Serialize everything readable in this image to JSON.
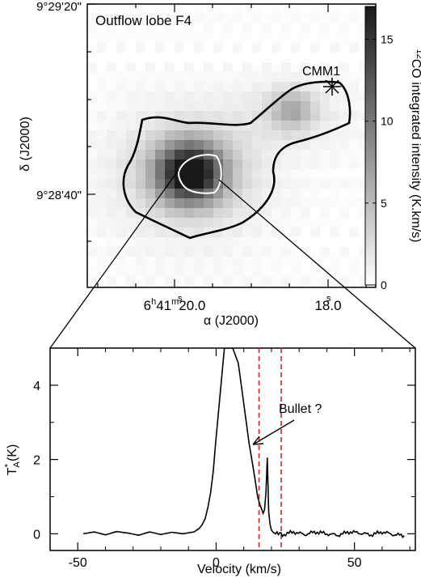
{
  "chart_data": [
    {
      "type": "heatmap",
      "title": "Outflow lobe F4",
      "xlabel": "α (J2000)",
      "ylabel": "δ (J2000)",
      "x_ticks": [
        {
          "label_main": "6",
          "sup1": "h",
          "label_mid": "41",
          "sup2": "m",
          "label_end": "20.0",
          "sup3": "s",
          "ra_s": 20.0
        },
        {
          "label_main": "18.0",
          "sup3": "s",
          "ra_s": 18.0
        }
      ],
      "y_ticks": [
        {
          "label": "9°29'20\"",
          "dec_s": 80
        },
        {
          "label": "9°28'40\"",
          "dec_s": 40
        }
      ],
      "ra_range_s": [
        21.5,
        17.0
      ],
      "dec_range_s": [
        17,
        80
      ],
      "colorbar": {
        "label_pre": "12",
        "label_post": "CO integrated intensity (K.km/s)",
        "min": 0,
        "max": 17,
        "ticks": [
          "0",
          "5",
          "10",
          "15"
        ],
        "tick_values": [
          0,
          5,
          10,
          15
        ],
        "colormap": "gray_reversed"
      },
      "source_marker": {
        "label": "CMM1",
        "ra_s": 18.0,
        "dec_s": 61.0,
        "symbol": "asterisk"
      },
      "emission_peaks": [
        {
          "ra_s": 19.9,
          "dec_s": 42.5,
          "intensity": 17
        },
        {
          "ra_s": 18.3,
          "dec_s": 56.5,
          "intensity": 5
        }
      ],
      "contour_colors": {
        "outer": "#000000",
        "inner": "#ffffff"
      }
    },
    {
      "type": "line",
      "xlabel": "Velocity (km/s)",
      "ylabel_main": "T",
      "ylabel_sub": "A",
      "ylabel_sup": "*",
      "ylabel_unit": "(K)",
      "xlim": [
        -60,
        72
      ],
      "ylim": [
        -0.45,
        5.0
      ],
      "x_ticks": [
        -50,
        0,
        50
      ],
      "y_ticks": [
        0,
        2,
        4
      ],
      "annotation": {
        "text": "Bullet ?",
        "target_velocity": 20,
        "target_ta": 2.2
      },
      "vertical_lines": [
        {
          "x": 15.5,
          "color": "#e02020"
        },
        {
          "x": 23.5,
          "color": "#e02020"
        }
      ],
      "spectrum": {
        "velocity": [
          -48,
          -44,
          -40,
          -36,
          -32,
          -28,
          -24,
          -20,
          -16,
          -12,
          -8,
          -6,
          -5,
          -4,
          -3,
          -2,
          -1,
          0,
          1,
          2,
          3,
          3.5,
          4,
          6,
          8,
          10,
          12,
          14,
          15,
          16,
          17,
          17.5,
          18,
          18.5,
          19,
          19.5,
          20,
          20.5,
          21,
          21.5,
          22,
          24,
          28,
          32,
          36,
          40,
          44,
          48,
          52,
          56,
          60,
          64,
          68
        ],
        "ta": [
          0.0,
          0.05,
          -0.03,
          0.06,
          0.02,
          -0.04,
          0.05,
          -0.02,
          0.04,
          0.0,
          0.05,
          0.15,
          0.25,
          0.4,
          0.7,
          1.1,
          1.7,
          2.6,
          3.4,
          4.2,
          5.0,
          5.0,
          5.0,
          5.0,
          4.6,
          3.5,
          2.4,
          1.5,
          1.0,
          0.75,
          0.55,
          0.65,
          1.1,
          2.05,
          0.6,
          0.25,
          0.1,
          0.05,
          0.02,
          0.0,
          0.04,
          -0.03,
          0.05,
          -0.02,
          0.05,
          0.0,
          -0.04,
          0.05,
          0.02,
          -0.03,
          0.05,
          -0.02,
          -0.05
        ]
      }
    }
  ]
}
